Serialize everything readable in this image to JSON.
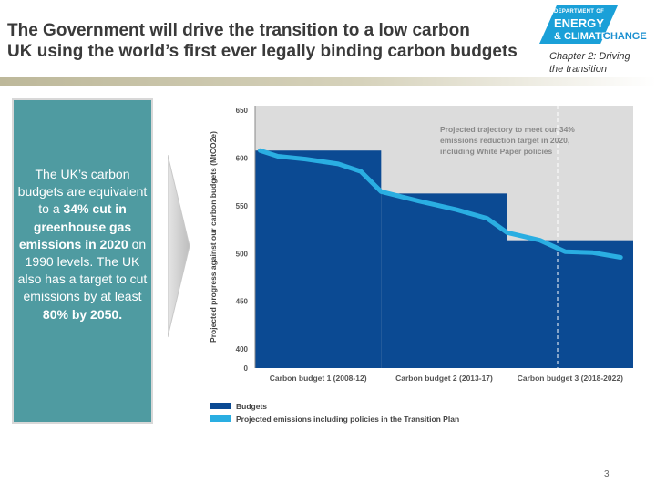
{
  "slide": {
    "title_line1": "The Government will drive the transition to a low carbon",
    "title_line2": "UK using the world’s first ever legally binding carbon budgets",
    "chapter_line1": "Chapter 2: Driving",
    "chapter_line2": "the transition",
    "page_number": "3"
  },
  "logo": {
    "dept": "DEPARTMENT OF",
    "energy": "ENERGY",
    "climate": "& CLIMATE",
    "change": "CHANGE"
  },
  "textbox": {
    "p1": "The UK’s carbon budgets are equivalent to a",
    "b1": "34% cut in greenhouse gas emissions in 2020",
    "p2": "on 1990 levels. The UK also has a target to cut emissions by at least",
    "b2": "80% by 2050."
  },
  "chart_data": {
    "type": "bar",
    "ylabel": "Projected progress against our carbon budgets (MtCO2e)",
    "yticks": [
      400,
      450,
      500,
      550,
      600,
      650
    ],
    "yzero_label": "0",
    "ylim": [
      380,
      655
    ],
    "categories": [
      "Carbon budget 1 (2008-12)",
      "Carbon budget 2 (2013-17)",
      "Carbon budget 3 (2018-2022)"
    ],
    "years": [
      2008,
      2023
    ],
    "budget_periods": [
      [
        2008,
        2013
      ],
      [
        2013,
        2018
      ],
      [
        2018,
        2023
      ]
    ],
    "series": [
      {
        "name": "Budgets",
        "values": [
          608,
          563,
          514
        ],
        "color": "#0b4a93"
      },
      {
        "name": "Projected emissions including policies in the Transition Plan",
        "color": "#2aaee2",
        "x": [
          2008.2,
          2008.9,
          2010,
          2011.3,
          2012.2,
          2013,
          2014.5,
          2016,
          2017.2,
          2018,
          2019.3,
          2020.3,
          2021.4,
          2022.5
        ],
        "y": [
          608,
          602,
          599,
          594,
          586,
          565,
          555,
          546,
          537,
          522,
          514,
          502,
          501,
          496
        ]
      }
    ],
    "projection_line_year": 2020,
    "annotation": "Projected trajectory to meet our 34% emissions reduction target in 2020, including White Paper policies",
    "legend_placement": "bottom-left"
  }
}
